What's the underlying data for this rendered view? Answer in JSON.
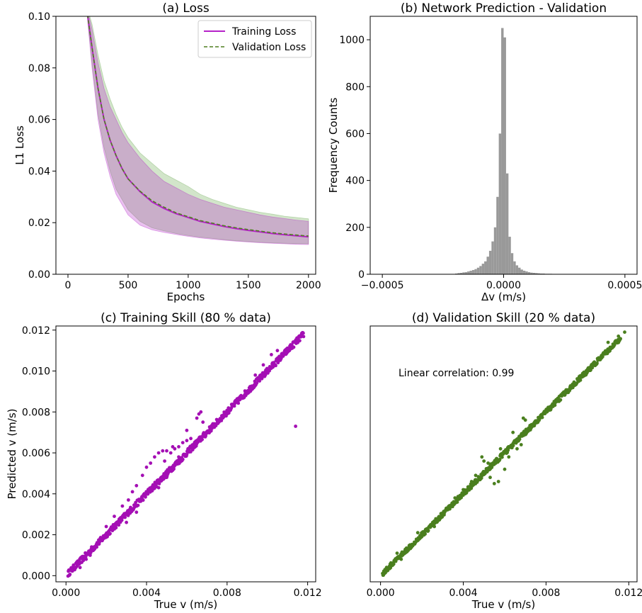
{
  "colors": {
    "training": "#b522c8",
    "training_band": "#b522c8",
    "validation": "#4f7f1f",
    "validation_band": "#6aa84f",
    "histogram": "#999999",
    "scatter_train": "#a40fb4",
    "scatter_val": "#4a7f1e"
  },
  "chart_data": [
    {
      "id": "a",
      "type": "line",
      "title": "(a) Loss",
      "xlabel": "Epochs",
      "ylabel": "L1 Loss",
      "xlim": [
        -100,
        2060
      ],
      "ylim": [
        0.0,
        0.1
      ],
      "xticks": [
        0,
        500,
        1000,
        1500,
        2000
      ],
      "xtick_labels": [
        "0",
        "500",
        "1000",
        "1500",
        "2000"
      ],
      "yticks": [
        0.0,
        0.02,
        0.04,
        0.06,
        0.08,
        0.1
      ],
      "ytick_labels": [
        "0.00",
        "0.02",
        "0.04",
        "0.06",
        "0.08",
        "0.10"
      ],
      "legend_position": "top-right",
      "grid": false,
      "x": [
        150,
        200,
        250,
        300,
        350,
        400,
        450,
        500,
        600,
        700,
        800,
        900,
        1000,
        1100,
        1200,
        1300,
        1400,
        1500,
        1600,
        1700,
        1800,
        1900,
        2000
      ],
      "series": [
        {
          "name": "Training Loss",
          "style": "solid",
          "values": [
            0.105,
            0.088,
            0.072,
            0.06,
            0.052,
            0.046,
            0.041,
            0.037,
            0.032,
            0.028,
            0.0255,
            0.0235,
            0.022,
            0.0205,
            0.0195,
            0.0185,
            0.0177,
            0.017,
            0.0164,
            0.0158,
            0.0153,
            0.0149,
            0.0145
          ],
          "band_upper": [
            0.105,
            0.095,
            0.082,
            0.072,
            0.065,
            0.06,
            0.055,
            0.051,
            0.045,
            0.04,
            0.036,
            0.0335,
            0.031,
            0.029,
            0.0275,
            0.026,
            0.025,
            0.024,
            0.023,
            0.0222,
            0.0216,
            0.021,
            0.0205
          ],
          "band_lower": [
            0.105,
            0.08,
            0.06,
            0.047,
            0.038,
            0.031,
            0.027,
            0.023,
            0.019,
            0.0172,
            0.0162,
            0.0154,
            0.0147,
            0.0141,
            0.0136,
            0.0132,
            0.0128,
            0.0125,
            0.0122,
            0.012,
            0.0118,
            0.0116,
            0.0115
          ]
        },
        {
          "name": "Validation Loss",
          "style": "dashed",
          "values": [
            0.105,
            0.088,
            0.072,
            0.06,
            0.052,
            0.046,
            0.041,
            0.037,
            0.0322,
            0.0285,
            0.026,
            0.0238,
            0.0223,
            0.0208,
            0.0198,
            0.0188,
            0.018,
            0.0173,
            0.0167,
            0.0161,
            0.0156,
            0.0152,
            0.0148
          ],
          "band_upper": [
            0.105,
            0.097,
            0.085,
            0.075,
            0.068,
            0.062,
            0.057,
            0.053,
            0.047,
            0.043,
            0.039,
            0.0365,
            0.034,
            0.031,
            0.029,
            0.0275,
            0.026,
            0.025,
            0.024,
            0.0233,
            0.0225,
            0.022,
            0.0215
          ],
          "band_lower": [
            0.105,
            0.082,
            0.062,
            0.049,
            0.04,
            0.033,
            0.029,
            0.025,
            0.0205,
            0.018,
            0.0168,
            0.0158,
            0.015,
            0.0144,
            0.0139,
            0.0134,
            0.013,
            0.0127,
            0.0124,
            0.0122,
            0.012,
            0.0119,
            0.0118
          ]
        }
      ]
    },
    {
      "id": "b",
      "type": "bar",
      "title": "(b) Network Prediction - Validation",
      "xlabel": "Δv (m/s)",
      "ylabel": "Frequency Counts",
      "xlim": [
        -0.00055,
        0.00055
      ],
      "ylim": [
        0,
        1100
      ],
      "xticks": [
        -0.0005,
        0.0,
        0.0005
      ],
      "xtick_labels": [
        "−0.0005",
        "0.0000",
        "0.0005"
      ],
      "yticks": [
        0,
        200,
        400,
        600,
        800,
        1000
      ],
      "ytick_labels": [
        "0",
        "200",
        "400",
        "600",
        "800",
        "1000"
      ],
      "grid": false,
      "bin_width": 1e-05,
      "bin_centers": [
        -0.000195,
        -0.000185,
        -0.000175,
        -0.000165,
        -0.000155,
        -0.000145,
        -0.000135,
        -0.000125,
        -0.000115,
        -0.000105,
        -9.5e-05,
        -8.5e-05,
        -7.5e-05,
        -6.5e-05,
        -5.5e-05,
        -4.5e-05,
        -3.5e-05,
        -2.5e-05,
        -1.5e-05,
        -5e-06,
        5e-06,
        1.5e-05,
        2.5e-05,
        3.5e-05,
        4.5e-05,
        5.5e-05,
        6.5e-05,
        7.5e-05,
        8.5e-05,
        9.5e-05,
        0.000105,
        0.000115,
        0.000125,
        0.000135,
        0.000145,
        0.000155,
        0.000165,
        0.000175,
        0.000185,
        0.000195
      ],
      "counts": [
        3,
        5,
        6,
        8,
        9,
        12,
        15,
        18,
        22,
        28,
        35,
        45,
        55,
        75,
        100,
        140,
        200,
        330,
        600,
        1050,
        1010,
        430,
        160,
        90,
        55,
        38,
        28,
        20,
        15,
        12,
        9,
        7,
        6,
        5,
        4,
        3,
        3,
        2,
        2,
        2
      ]
    },
    {
      "id": "c",
      "type": "scatter",
      "title": "(c) Training Skill (80 % data)",
      "xlabel": "True v (m/s)",
      "ylabel": "Predicted v  (m/s)",
      "xlim": [
        -0.0005,
        0.0124
      ],
      "ylim": [
        -0.0003,
        0.0122
      ],
      "xticks": [
        0.0,
        0.004,
        0.008,
        0.012
      ],
      "xtick_labels": [
        "0.000",
        "0.004",
        "0.008",
        "0.012"
      ],
      "yticks": [
        0.0,
        0.002,
        0.004,
        0.006,
        0.008,
        0.01,
        0.012
      ],
      "ytick_labels": [
        "0.000",
        "0.002",
        "0.004",
        "0.006",
        "0.008",
        "0.010",
        "0.012"
      ],
      "grid": false,
      "trend": {
        "x_range": [
          0.0001,
          0.0118
        ],
        "slope": 1.0,
        "spread": 0.00015
      },
      "points": [
        [
          0.0024,
          0.0029
        ],
        [
          0.0028,
          0.0034
        ],
        [
          0.0031,
          0.0037
        ],
        [
          0.0033,
          0.0041
        ],
        [
          0.0035,
          0.0044
        ],
        [
          0.0038,
          0.0049
        ],
        [
          0.004,
          0.0053
        ],
        [
          0.0042,
          0.0055
        ],
        [
          0.0044,
          0.0058
        ],
        [
          0.0046,
          0.006
        ],
        [
          0.0048,
          0.0061
        ],
        [
          0.005,
          0.0061
        ],
        [
          0.0052,
          0.006
        ],
        [
          0.0054,
          0.0062
        ],
        [
          0.0056,
          0.0063
        ],
        [
          0.0058,
          0.0065
        ],
        [
          0.006,
          0.0066
        ],
        [
          0.0062,
          0.0067
        ],
        [
          0.0065,
          0.0077
        ],
        [
          0.0066,
          0.0079
        ],
        [
          0.0067,
          0.008
        ],
        [
          0.0068,
          0.0075
        ],
        [
          0.006,
          0.0071
        ],
        [
          0.0056,
          0.0058
        ],
        [
          0.005,
          0.0048
        ],
        [
          0.0046,
          0.0043
        ],
        [
          0.0049,
          0.0056
        ],
        [
          0.0053,
          0.0063
        ],
        [
          0.0114,
          0.0073
        ],
        [
          0.0005,
          0.0006
        ],
        [
          0.0007,
          0.0004
        ],
        [
          0.001,
          0.0008
        ],
        [
          0.0012,
          0.001
        ],
        [
          0.003,
          0.0026
        ],
        [
          0.0035,
          0.0031
        ],
        [
          0.002,
          0.0024
        ],
        [
          0.0094,
          0.0098
        ],
        [
          0.0098,
          0.0103
        ],
        [
          0.0102,
          0.0108
        ],
        [
          0.0105,
          0.011
        ]
      ]
    },
    {
      "id": "d",
      "type": "scatter",
      "title": "(d) Validation Skill (20 % data)",
      "xlabel": "True v (m/s)",
      "ylabel": "",
      "annotation": "Linear correlation: 0.99",
      "xlim": [
        -0.0005,
        0.0124
      ],
      "ylim": [
        -0.0003,
        0.0122
      ],
      "xticks": [
        0.0,
        0.004,
        0.008,
        0.012
      ],
      "xtick_labels": [
        "0.000",
        "0.004",
        "0.008",
        "0.012"
      ],
      "grid": false,
      "trend": {
        "x_range": [
          0.0001,
          0.0116
        ],
        "slope": 1.0,
        "spread": 0.00012
      },
      "points": [
        [
          0.0049,
          0.0058
        ],
        [
          0.005,
          0.0056
        ],
        [
          0.0052,
          0.0055
        ],
        [
          0.0053,
          0.0048
        ],
        [
          0.0055,
          0.0045
        ],
        [
          0.0057,
          0.0046
        ],
        [
          0.006,
          0.0052
        ],
        [
          0.0062,
          0.0058
        ],
        [
          0.0066,
          0.0062
        ],
        [
          0.0068,
          0.0064
        ],
        [
          0.007,
          0.0076
        ],
        [
          0.0069,
          0.0077
        ],
        [
          0.0064,
          0.007
        ],
        [
          0.0058,
          0.0062
        ],
        [
          0.0046,
          0.0049
        ],
        [
          0.0044,
          0.0046
        ],
        [
          0.004,
          0.0042
        ],
        [
          0.0036,
          0.0038
        ],
        [
          0.0026,
          0.0024
        ],
        [
          0.0018,
          0.0021
        ],
        [
          0.001,
          0.0008
        ],
        [
          0.0008,
          0.0011
        ],
        [
          0.011,
          0.0114
        ],
        [
          0.0115,
          0.0117
        ],
        [
          0.0118,
          0.0119
        ]
      ]
    }
  ]
}
